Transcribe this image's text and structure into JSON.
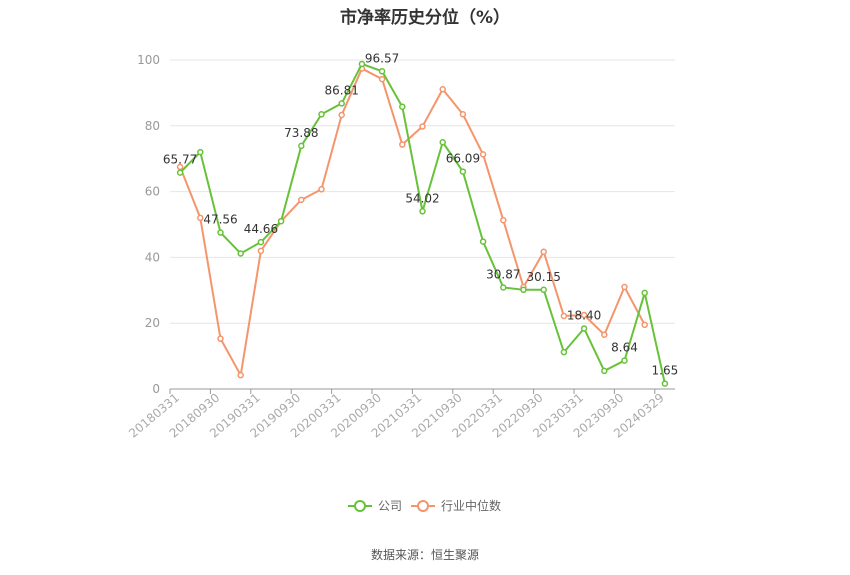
{
  "title": "市净率历史分位（%）",
  "source": "数据来源：恒生聚源",
  "chart_data": {
    "type": "line",
    "ylim": [
      0,
      100
    ],
    "yticks": [
      0,
      20,
      40,
      60,
      80,
      100
    ],
    "x": [
      "20180331",
      "20180630",
      "20180930",
      "20181231",
      "20190331",
      "20190630",
      "20190930",
      "20191231",
      "20200331",
      "20200630",
      "20200930",
      "20201231",
      "20210331",
      "20210630",
      "20210930",
      "20211231",
      "20220331",
      "20220630",
      "20220930",
      "20221231",
      "20230331",
      "20230630",
      "20230930",
      "20231231",
      "20240329"
    ],
    "xtick_labels": [
      "20180331",
      "20180930",
      "20190331",
      "20190930",
      "20200331",
      "20200930",
      "20210331",
      "20210930",
      "20220331",
      "20220930",
      "20230331",
      "20230930",
      "20240329"
    ],
    "series": [
      {
        "name": "公司",
        "color": "#67c23a",
        "values": [
          65.77,
          72,
          47.56,
          41.2,
          44.66,
          51,
          73.88,
          83.5,
          86.81,
          98.8,
          96.57,
          85.8,
          54.02,
          75,
          66.09,
          44.8,
          30.87,
          30.15,
          30.15,
          11.2,
          18.4,
          5.5,
          8.64,
          29.2,
          1.65
        ],
        "labels": [
          "65.77",
          "",
          "47.56",
          "",
          "44.66",
          "",
          "73.88",
          "",
          "86.81",
          "",
          "96.57",
          "",
          "54.02",
          "",
          "66.09",
          "",
          "30.87",
          "",
          "30.15",
          "",
          "18.40",
          "",
          "8.64",
          "",
          "1.65"
        ]
      },
      {
        "name": "行业中位数",
        "color": "#f4956b",
        "values": [
          67.5,
          52,
          15.3,
          4.2,
          42,
          51,
          57.5,
          60.7,
          83.3,
          97.4,
          94.2,
          74.3,
          79.8,
          91.1,
          83.5,
          71.3,
          51.3,
          31,
          41.7,
          22.2,
          22.5,
          16.5,
          31,
          19.5,
          null
        ]
      }
    ],
    "legend": "bottom-center"
  }
}
